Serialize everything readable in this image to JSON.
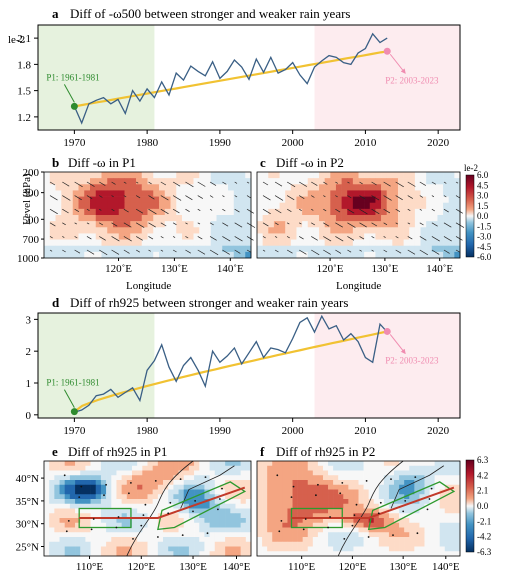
{
  "chart_data": [
    {
      "panel": "a",
      "type": "line",
      "title": "Diff of -ω500 between stronger and weaker rain years",
      "ylabel": "le-2",
      "x": [
        1970,
        1971,
        1972,
        1973,
        1974,
        1975,
        1976,
        1977,
        1978,
        1979,
        1980,
        1981,
        1982,
        1983,
        1984,
        1985,
        1986,
        1987,
        1988,
        1989,
        1990,
        1991,
        1992,
        1993,
        1994,
        1995,
        1996,
        1997,
        1998,
        1999,
        2000,
        2001,
        2002,
        2003,
        2004,
        2005,
        2006,
        2007,
        2008,
        2009,
        2010,
        2011,
        2012,
        2013
      ],
      "values": [
        1.32,
        1.13,
        1.35,
        1.39,
        1.42,
        1.35,
        1.4,
        1.24,
        1.5,
        1.38,
        1.52,
        1.42,
        1.6,
        1.45,
        1.7,
        1.62,
        1.78,
        1.72,
        1.67,
        1.83,
        1.64,
        1.72,
        1.85,
        1.77,
        1.63,
        1.86,
        1.71,
        1.88,
        1.7,
        1.74,
        1.82,
        1.68,
        1.58,
        1.77,
        1.84,
        1.9,
        1.88,
        1.82,
        1.8,
        1.93,
        1.98,
        2.15,
        2.05,
        2.1
      ],
      "trend": [
        1.32,
        1.95
      ],
      "xlim": [
        1965,
        2023
      ],
      "ylim": [
        1.05,
        2.25
      ],
      "xticks": [
        1970,
        1980,
        1990,
        2000,
        2010,
        2020
      ],
      "yticks": [
        "1.2",
        "1.5",
        "1.8",
        "2.1"
      ],
      "shaded_periods": [
        [
          1965,
          1981
        ],
        [
          2003,
          2023
        ]
      ],
      "annotations": [
        "P1: 1961-1981",
        "P2: 2003-2023"
      ]
    },
    {
      "panel": "b",
      "type": "heatmap",
      "title": "Diff -ω in P1",
      "xlabel": "Longitude",
      "ylabel": "Level (hPa)",
      "xticks": [
        "120˚E",
        "130˚E",
        "140˚E"
      ],
      "yticks": [
        "200",
        "300",
        "500",
        "700",
        "1000"
      ]
    },
    {
      "panel": "c",
      "type": "heatmap",
      "title": "Diff -ω in P2",
      "xlabel": "Longitude",
      "xticks": [
        "120˚E",
        "130˚E",
        "140˚E"
      ],
      "colorbar_unit": "le-2",
      "colorbar_ticks": [
        "6.0",
        "4.5",
        "3.0",
        "1.5",
        "0.0",
        "-1.5",
        "-3.0",
        "-4.5",
        "-6.0"
      ]
    },
    {
      "panel": "d",
      "type": "line",
      "title": "Diff of rh925 between stronger and weaker rain years",
      "x": [
        1970,
        1971,
        1972,
        1973,
        1974,
        1975,
        1976,
        1977,
        1978,
        1979,
        1980,
        1981,
        1982,
        1983,
        1984,
        1985,
        1986,
        1987,
        1988,
        1989,
        1990,
        1991,
        1992,
        1993,
        1994,
        1995,
        1996,
        1997,
        1998,
        1999,
        2000,
        2001,
        2002,
        2003,
        2004,
        2005,
        2006,
        2007,
        2008,
        2009,
        2010,
        2011,
        2012,
        2013
      ],
      "values": [
        0.08,
        0.15,
        0.3,
        0.6,
        0.65,
        0.8,
        0.55,
        0.7,
        0.85,
        0.45,
        1.4,
        1.7,
        2.2,
        1.5,
        1.05,
        1.55,
        1.8,
        1.4,
        0.9,
        2.0,
        1.65,
        1.85,
        2.1,
        1.6,
        1.95,
        2.3,
        1.8,
        2.1,
        2.05,
        1.95,
        2.4,
        2.9,
        3.05,
        2.6,
        3.1,
        2.7,
        2.8,
        2.35,
        2.55,
        2.3,
        1.8,
        1.65,
        2.85,
        2.6
      ],
      "trend": [
        0.1,
        2.62
      ],
      "xlim": [
        1965,
        2023
      ],
      "ylim": [
        -0.1,
        3.2
      ],
      "xticks": [
        1970,
        1980,
        1990,
        2000,
        2010,
        2020
      ],
      "yticks": [
        "0",
        "1",
        "2",
        "3"
      ],
      "shaded_periods": [
        [
          1965,
          1981
        ],
        [
          2003,
          2023
        ]
      ],
      "annotations": [
        "P1: 1961-1981",
        "P2: 2003-2023"
      ]
    },
    {
      "panel": "e",
      "type": "heatmap",
      "title": "Diff of rh925 in P1",
      "xticks": [
        "110°E",
        "120°E",
        "130°E",
        "140°E"
      ],
      "yticks": [
        "40°N",
        "35°N",
        "30°N",
        "25°N"
      ]
    },
    {
      "panel": "f",
      "type": "heatmap",
      "title": "Diff of rh925 in P2",
      "xticks": [
        "110°E",
        "120°E",
        "130°E",
        "140°E"
      ],
      "colorbar_ticks": [
        "6.3",
        "4.2",
        "2.1",
        "0.0",
        "-2.1",
        "-4.2",
        "-6.3"
      ]
    }
  ],
  "colors": {
    "p1_shade": "#e6f2de",
    "p2_shade": "#fdecef",
    "series_line": "#3a5f85",
    "trend_line": "#f1c232",
    "p1_marker": "#2e8b2e",
    "p2_marker": "#f08cb0",
    "box": "#2e9a2e",
    "rain_belt": "#c23a2a"
  }
}
